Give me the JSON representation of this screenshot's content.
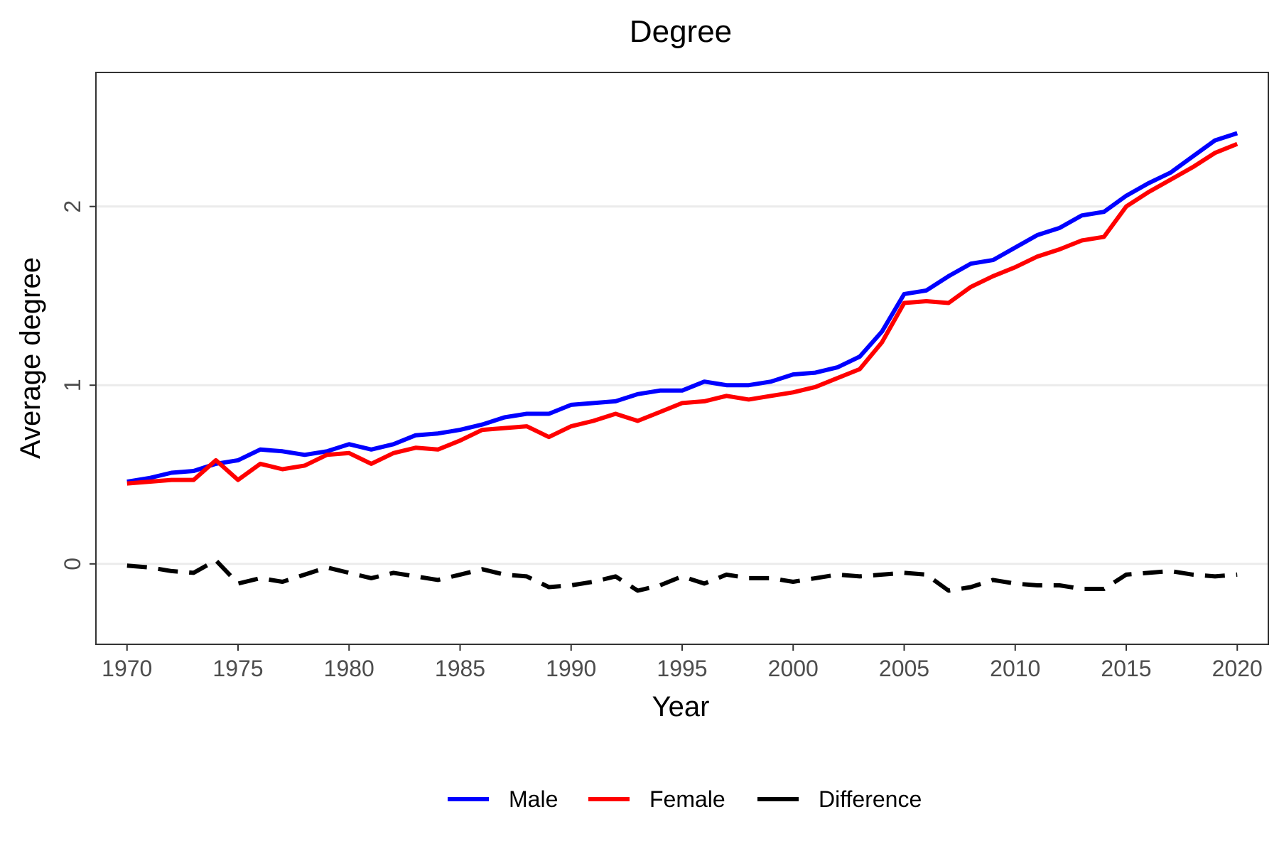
{
  "chart_data": {
    "type": "line",
    "title": "Degree",
    "xlabel": "Year",
    "ylabel": "Average degree",
    "xlim": [
      1968.6,
      2021.4
    ],
    "ylim": [
      -0.45,
      2.75
    ],
    "x_ticks": [
      1970,
      1975,
      1980,
      1985,
      1990,
      1995,
      2000,
      2005,
      2010,
      2015,
      2020
    ],
    "x_tick_labels": [
      "1970",
      "1975",
      "1980",
      "1985",
      "1990",
      "1995",
      "2000",
      "2005",
      "2010",
      "2015",
      "2020"
    ],
    "y_ticks": [
      0,
      1,
      2
    ],
    "y_tick_labels": [
      "0",
      "1",
      "2"
    ],
    "grid": "horizontal-major",
    "legend_position": "bottom",
    "x": [
      1970,
      1971,
      1972,
      1973,
      1974,
      1975,
      1976,
      1977,
      1978,
      1979,
      1980,
      1981,
      1982,
      1983,
      1984,
      1985,
      1986,
      1987,
      1988,
      1989,
      1990,
      1991,
      1992,
      1993,
      1994,
      1995,
      1996,
      1997,
      1998,
      1999,
      2000,
      2001,
      2002,
      2003,
      2004,
      2005,
      2006,
      2007,
      2008,
      2009,
      2010,
      2011,
      2012,
      2013,
      2014,
      2015,
      2016,
      2017,
      2018,
      2019,
      2020
    ],
    "series": [
      {
        "name": "Male",
        "color": "#0000FF",
        "dash": "solid",
        "values": [
          0.46,
          0.48,
          0.51,
          0.52,
          0.56,
          0.58,
          0.64,
          0.63,
          0.61,
          0.63,
          0.67,
          0.64,
          0.67,
          0.72,
          0.73,
          0.75,
          0.78,
          0.82,
          0.84,
          0.84,
          0.89,
          0.9,
          0.91,
          0.95,
          0.97,
          0.97,
          1.02,
          1.0,
          1.0,
          1.02,
          1.06,
          1.07,
          1.1,
          1.16,
          1.3,
          1.51,
          1.53,
          1.61,
          1.68,
          1.7,
          1.77,
          1.84,
          1.88,
          1.95,
          1.97,
          2.06,
          2.13,
          2.19,
          2.28,
          2.37,
          2.41
        ]
      },
      {
        "name": "Female",
        "color": "#FF0000",
        "dash": "solid",
        "values": [
          0.45,
          0.46,
          0.47,
          0.47,
          0.58,
          0.47,
          0.56,
          0.53,
          0.55,
          0.61,
          0.62,
          0.56,
          0.62,
          0.65,
          0.64,
          0.69,
          0.75,
          0.76,
          0.77,
          0.71,
          0.77,
          0.8,
          0.84,
          0.8,
          0.85,
          0.9,
          0.91,
          0.94,
          0.92,
          0.94,
          0.96,
          0.99,
          1.04,
          1.09,
          1.24,
          1.46,
          1.47,
          1.46,
          1.55,
          1.61,
          1.66,
          1.72,
          1.76,
          1.81,
          1.83,
          2.0,
          2.08,
          2.15,
          2.22,
          2.3,
          2.35
        ]
      },
      {
        "name": "Difference",
        "color": "#000000",
        "dash": "dashed",
        "values": [
          -0.01,
          -0.02,
          -0.04,
          -0.05,
          0.02,
          -0.11,
          -0.08,
          -0.1,
          -0.06,
          -0.02,
          -0.05,
          -0.08,
          -0.05,
          -0.07,
          -0.09,
          -0.06,
          -0.03,
          -0.06,
          -0.07,
          -0.13,
          -0.12,
          -0.1,
          -0.07,
          -0.15,
          -0.12,
          -0.07,
          -0.11,
          -0.06,
          -0.08,
          -0.08,
          -0.1,
          -0.08,
          -0.06,
          -0.07,
          -0.06,
          -0.05,
          -0.06,
          -0.15,
          -0.13,
          -0.09,
          -0.11,
          -0.12,
          -0.12,
          -0.14,
          -0.14,
          -0.06,
          -0.05,
          -0.04,
          -0.06,
          -0.07,
          -0.06
        ]
      }
    ]
  }
}
